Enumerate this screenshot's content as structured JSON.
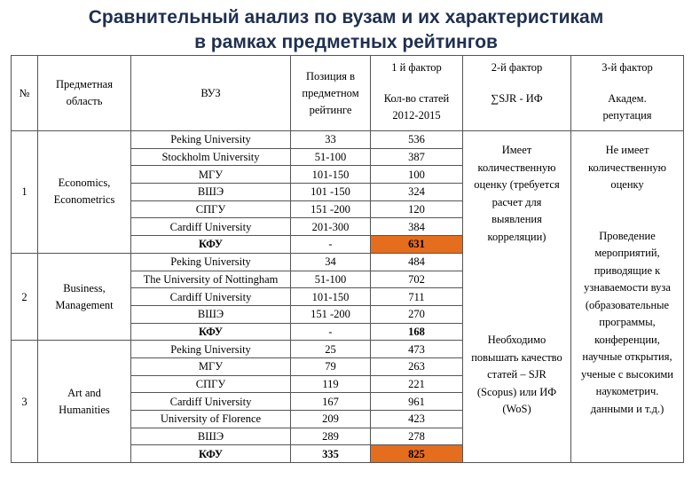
{
  "title": {
    "line1": "Сравнительный анализ по вузам и их характеристикам",
    "line2": "в рамках предметных рейтингов"
  },
  "headers": {
    "num": "№",
    "area": "Предметная область",
    "uni": "ВУЗ",
    "position": "Позиция в предметном рейтинге",
    "f1_title": "1 й фактор",
    "f1_sub": "Кол-во статей 2012-2015",
    "f2_title": "2-й фактор",
    "f2_sub": "∑SJR - ИФ",
    "f3_title": "3-й фактор",
    "f3_sub": "Академ. репутация"
  },
  "groups": [
    {
      "num": "1",
      "area": "Economics, Econometrics"
    },
    {
      "num": "2",
      "area": "Business, Management"
    },
    {
      "num": "3",
      "area": "Art and Humanities"
    }
  ],
  "rows": [
    {
      "uni": "Peking University",
      "pos": "33",
      "articles": "536"
    },
    {
      "uni": "Stockholm University",
      "pos": "51-100",
      "articles": "387"
    },
    {
      "uni": "МГУ",
      "pos": "101-150",
      "articles": "100"
    },
    {
      "uni": "ВШЭ",
      "pos": "101 -150",
      "articles": "324"
    },
    {
      "uni": "СПГУ",
      "pos": "151 -200",
      "articles": "120"
    },
    {
      "uni": "Cardiff University",
      "pos": "201-300",
      "articles": "384"
    },
    {
      "uni": "КФУ",
      "pos": "-",
      "articles": "631"
    },
    {
      "uni": "Peking University",
      "pos": "34",
      "articles": "484"
    },
    {
      "uni": "The University of Nottingham",
      "pos": "51-100",
      "articles": "702"
    },
    {
      "uni": "Cardiff University",
      "pos": "101-150",
      "articles": "711"
    },
    {
      "uni": "ВШЭ",
      "pos": "151 -200",
      "articles": "270"
    },
    {
      "uni": "КФУ",
      "pos": "-",
      "articles": "168"
    },
    {
      "uni": "Peking University",
      "pos": "25",
      "articles": "473"
    },
    {
      "uni": "МГУ",
      "pos": "79",
      "articles": "263"
    },
    {
      "uni": "СПГУ",
      "pos": "119",
      "articles": "221"
    },
    {
      "uni": "Cardiff University",
      "pos": "167",
      "articles": "961"
    },
    {
      "uni": "University of Florence",
      "pos": "209",
      "articles": "423"
    },
    {
      "uni": "ВШЭ",
      "pos": "289",
      "articles": "278"
    },
    {
      "uni": "КФУ",
      "pos": "335",
      "articles": "825"
    }
  ],
  "factor2": {
    "note1": "Имеет количественную оценку (требуется расчет для выявления корреляции)",
    "note2": "Необходимо повышать качество статей – SJR (Scopus) или ИФ (WoS)"
  },
  "factor3": {
    "note1": "Не имеет количественную оценку",
    "note2": "Проведение мероприятий, приводящие к узнаваемости вуза (образовательные программы, конференции, научные открытия, ученые с высокими наукометрич. данными и т.д.)"
  },
  "colors": {
    "title": "#1f2f4f",
    "highlight": "#e46d1e"
  }
}
